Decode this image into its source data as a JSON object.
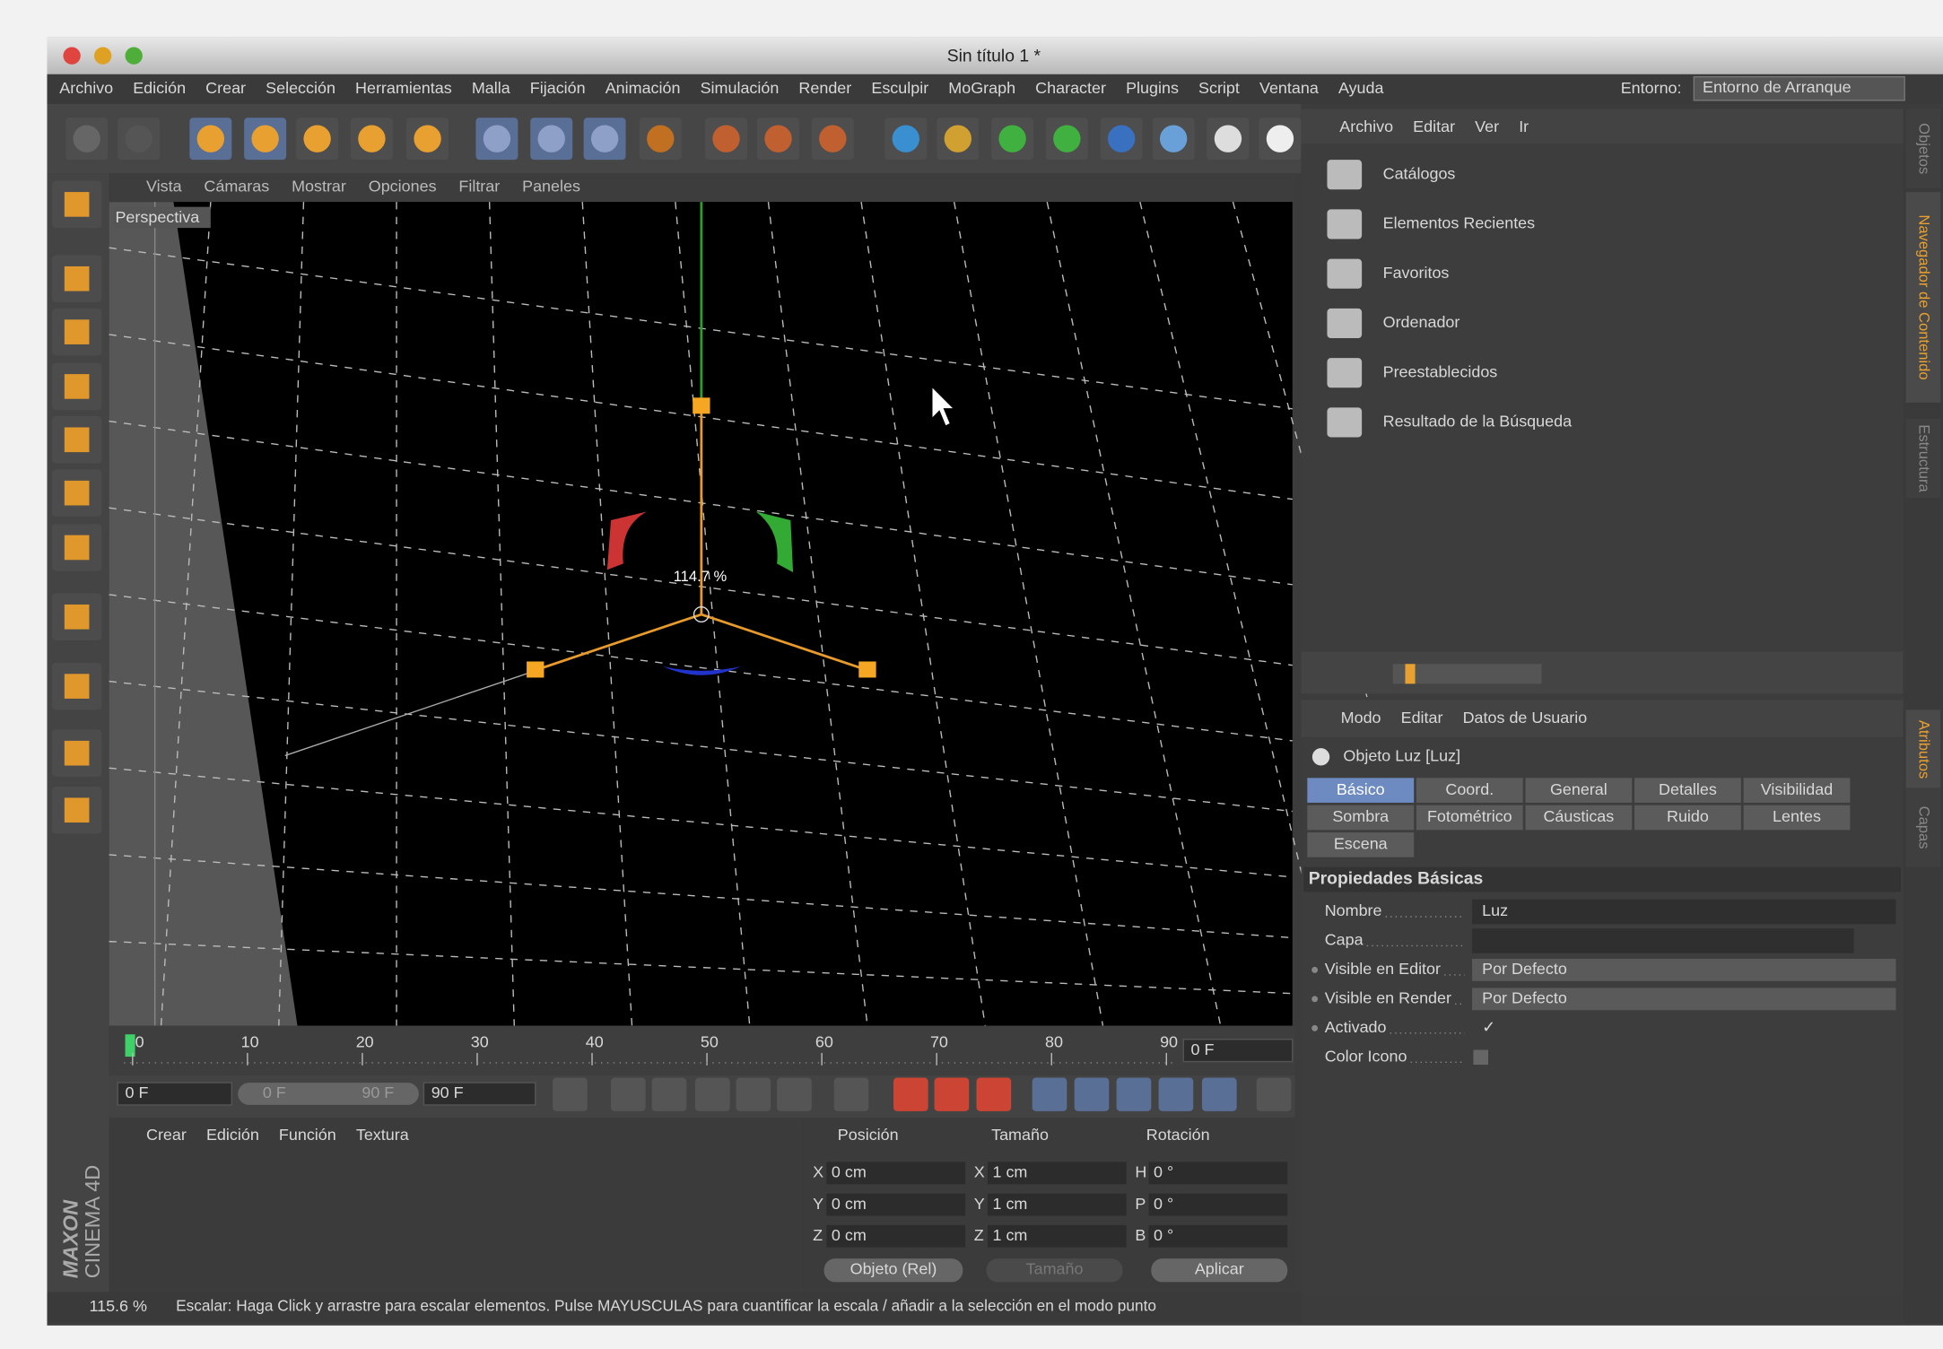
{
  "window": {
    "title": "Sin título 1 *"
  },
  "menu": [
    "Archivo",
    "Edición",
    "Crear",
    "Selección",
    "Herramientas",
    "Malla",
    "Fijación",
    "Animación",
    "Simulación",
    "Render",
    "Esculpir",
    "MoGraph",
    "Character",
    "Plugins",
    "Script",
    "Ventana",
    "Ayuda"
  ],
  "environment": {
    "label": "Entorno:",
    "value": "Entorno de Arranque"
  },
  "viewport": {
    "menu": [
      "Vista",
      "Cámaras",
      "Mostrar",
      "Opciones",
      "Filtrar",
      "Paneles"
    ],
    "camera": "Perspectiva",
    "scale_readout": "114.7 %"
  },
  "timeline": {
    "ticks": [
      0,
      10,
      20,
      30,
      40,
      50,
      60,
      70,
      80,
      90
    ],
    "current": "0 F",
    "start": "0 F",
    "range_start": "0 F",
    "range_end": "90 F",
    "end": "90 F"
  },
  "object_manager": {
    "menu": [
      "Crear",
      "Edición",
      "Función",
      "Textura"
    ]
  },
  "coordinates": {
    "headers": [
      "Posición",
      "Tamaño",
      "Rotación"
    ],
    "rows": [
      [
        "X",
        "0 cm",
        "X",
        "1 cm",
        "H",
        "0 °"
      ],
      [
        "Y",
        "0 cm",
        "Y",
        "1 cm",
        "P",
        "0 °"
      ],
      [
        "Z",
        "0 cm",
        "Z",
        "1 cm",
        "B",
        "0 °"
      ]
    ],
    "mode": "Objeto (Rel)",
    "size_mode": "Tamaño",
    "apply": "Aplicar"
  },
  "content_browser": {
    "menu": [
      "Archivo",
      "Editar",
      "Ver",
      "Ir"
    ],
    "items": [
      "Catálogos",
      "Elementos Recientes",
      "Favoritos",
      "Ordenador",
      "Preestablecidos",
      "Resultado de la Búsqueda"
    ]
  },
  "side_tabs": [
    "Objetos",
    "Navegador de Contenido",
    "Estructura",
    "Atributos",
    "Capas"
  ],
  "attributes": {
    "menu": [
      "Modo",
      "Editar",
      "Datos de Usuario"
    ],
    "object": "Objeto Luz [Luz]",
    "tabs": [
      [
        "Básico",
        "Coord.",
        "General",
        "Detalles",
        "Visibilidad"
      ],
      [
        "Sombra",
        "Fotométrico",
        "Cáusticas",
        "Ruido",
        "Lentes"
      ],
      [
        "Escena"
      ]
    ],
    "section": "Propiedades Básicas",
    "fields": [
      {
        "label": "Nombre",
        "value": "Luz"
      },
      {
        "label": "Capa"
      },
      {
        "label": "Visible en Editor",
        "value": "Por Defecto"
      },
      {
        "label": "Visible en Render",
        "value": "Por Defecto"
      },
      {
        "label": "Activado",
        "value": "✓"
      },
      {
        "label": "Color Icono"
      }
    ]
  },
  "brand": {
    "company": "MAXON",
    "product": "CINEMA 4D"
  },
  "status": {
    "zoom": "115.6 %",
    "message": "Escalar: Haga Click y arrastre para escalar elementos. Pulse MAYUSCULAS para cuantificar la escala / añadir a la selección en el modo punto"
  }
}
